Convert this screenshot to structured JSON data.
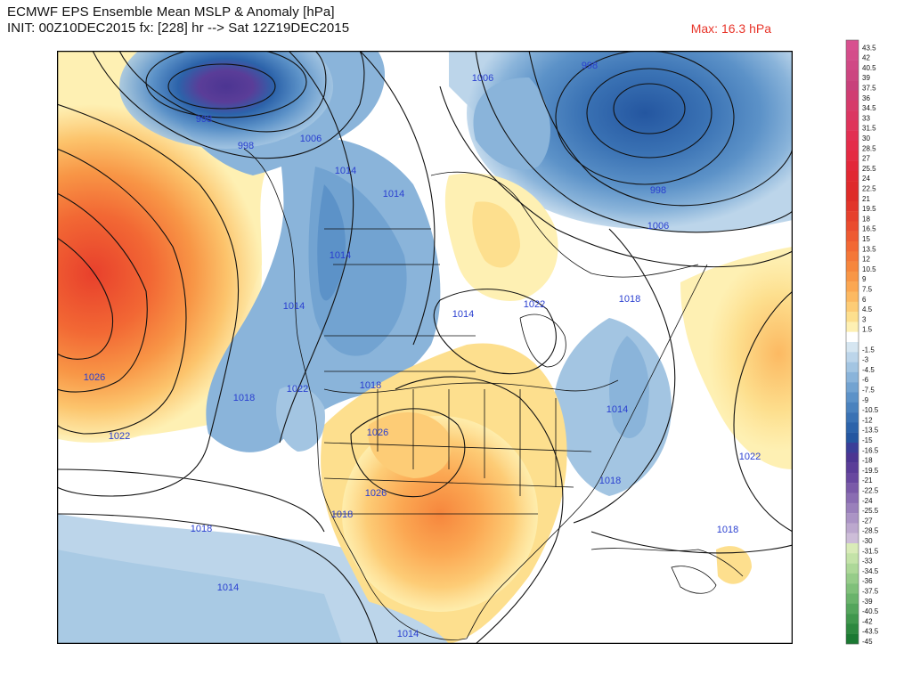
{
  "header": {
    "line1": "ECMWF EPS Ensemble Mean MSLP & Anomaly [hPa]",
    "line2": "INIT: 00Z10DEC2015 fx: [228] hr --> Sat 12Z19DEC2015",
    "max_label": "Max: 16.3 hPa",
    "max_color": "#e8352a"
  },
  "isobar_labels": [
    {
      "text": "998",
      "kind": "low"
    },
    {
      "text": "998",
      "kind": "low"
    },
    {
      "text": "1006",
      "kind": "mid"
    },
    {
      "text": "1014",
      "kind": "mid"
    },
    {
      "text": "1014",
      "kind": "mid"
    },
    {
      "text": "1014",
      "kind": "mid"
    },
    {
      "text": "1014",
      "kind": "mid"
    },
    {
      "text": "1026",
      "kind": "high"
    },
    {
      "text": "1018",
      "kind": "mid"
    },
    {
      "text": "1022",
      "kind": "mid"
    },
    {
      "text": "1022",
      "kind": "mid"
    },
    {
      "text": "1018",
      "kind": "mid"
    },
    {
      "text": "1026",
      "kind": "high"
    },
    {
      "text": "1026",
      "kind": "high"
    },
    {
      "text": "1018",
      "kind": "mid"
    },
    {
      "text": "1018",
      "kind": "mid"
    },
    {
      "text": "1014",
      "kind": "mid"
    },
    {
      "text": "1014",
      "kind": "mid"
    },
    {
      "text": "1006",
      "kind": "mid"
    },
    {
      "text": "998",
      "kind": "low"
    },
    {
      "text": "998",
      "kind": "low"
    },
    {
      "text": "1006",
      "kind": "mid"
    },
    {
      "text": "1018",
      "kind": "mid"
    },
    {
      "text": "1022",
      "kind": "mid"
    },
    {
      "text": "1018",
      "kind": "mid"
    },
    {
      "text": "1014",
      "kind": "mid"
    },
    {
      "text": "1018",
      "kind": "mid"
    },
    {
      "text": "1014",
      "kind": "mid"
    },
    {
      "text": "1022",
      "kind": "mid"
    }
  ],
  "legend": [
    {
      "label": "43.5",
      "color": "#d8508f"
    },
    {
      "label": "42",
      "color": "#d44d8a"
    },
    {
      "label": "40.5",
      "color": "#d04985"
    },
    {
      "label": "39",
      "color": "#cc4580"
    },
    {
      "label": "37.5",
      "color": "#c8417b"
    },
    {
      "label": "36",
      "color": "#d03d72"
    },
    {
      "label": "34.5",
      "color": "#d63a6a"
    },
    {
      "label": "33",
      "color": "#db3662"
    },
    {
      "label": "31.5",
      "color": "#df335a"
    },
    {
      "label": "30",
      "color": "#e22f52"
    },
    {
      "label": "28.5",
      "color": "#e42c4a"
    },
    {
      "label": "27",
      "color": "#e42a42"
    },
    {
      "label": "25.5",
      "color": "#e3283a"
    },
    {
      "label": "24",
      "color": "#e12832"
    },
    {
      "label": "22.5",
      "color": "#df2a2c"
    },
    {
      "label": "21",
      "color": "#de2c28"
    },
    {
      "label": "19.5",
      "color": "#e2352a"
    },
    {
      "label": "18",
      "color": "#e6402c"
    },
    {
      "label": "16.5",
      "color": "#ea4c2e"
    },
    {
      "label": "15",
      "color": "#ee5a31"
    },
    {
      "label": "13.5",
      "color": "#f26834"
    },
    {
      "label": "12",
      "color": "#f47738"
    },
    {
      "label": "10.5",
      "color": "#f6863d"
    },
    {
      "label": "9",
      "color": "#f89646"
    },
    {
      "label": "7.5",
      "color": "#fba752"
    },
    {
      "label": "6",
      "color": "#fcb962"
    },
    {
      "label": "4.5",
      "color": "#fdcc76"
    },
    {
      "label": "3",
      "color": "#fddf8e"
    },
    {
      "label": "1.5",
      "color": "#fef0b3"
    },
    {
      "label": "",
      "color": "#ffffff"
    },
    {
      "label": "-1.5",
      "color": "#d6e6f1"
    },
    {
      "label": "-3",
      "color": "#bcd5ea"
    },
    {
      "label": "-4.5",
      "color": "#a3c5e2"
    },
    {
      "label": "-6",
      "color": "#8ab4da"
    },
    {
      "label": "-7.5",
      "color": "#72a3d1"
    },
    {
      "label": "-9",
      "color": "#5c92c8"
    },
    {
      "label": "-10.5",
      "color": "#4a82be"
    },
    {
      "label": "-12",
      "color": "#3a72b4"
    },
    {
      "label": "-13.5",
      "color": "#2c63aa"
    },
    {
      "label": "-15",
      "color": "#2456a0"
    },
    {
      "label": "-16.5",
      "color": "#3a3e98"
    },
    {
      "label": "-18",
      "color": "#4c3592"
    },
    {
      "label": "-19.5",
      "color": "#5a3d98"
    },
    {
      "label": "-21",
      "color": "#68489f"
    },
    {
      "label": "-22.5",
      "color": "#7a5aa8"
    },
    {
      "label": "-24",
      "color": "#8a6db2"
    },
    {
      "label": "-25.5",
      "color": "#9a80bb"
    },
    {
      "label": "-27",
      "color": "#ab94c5"
    },
    {
      "label": "-28.5",
      "color": "#bca8ce"
    },
    {
      "label": "-30",
      "color": "#cdbdd8"
    },
    {
      "label": "-31.5",
      "color": "#d9ebb8"
    },
    {
      "label": "-33",
      "color": "#c4e3a8"
    },
    {
      "label": "-34.5",
      "color": "#add898"
    },
    {
      "label": "-36",
      "color": "#96cc89"
    },
    {
      "label": "-37.5",
      "color": "#80c07a"
    },
    {
      "label": "-39",
      "color": "#6ab36b"
    },
    {
      "label": "-40.5",
      "color": "#54a55c"
    },
    {
      "label": "-42",
      "color": "#40974d"
    },
    {
      "label": "-43.5",
      "color": "#2d883f"
    },
    {
      "label": "-45",
      "color": "#1b7932"
    }
  ]
}
